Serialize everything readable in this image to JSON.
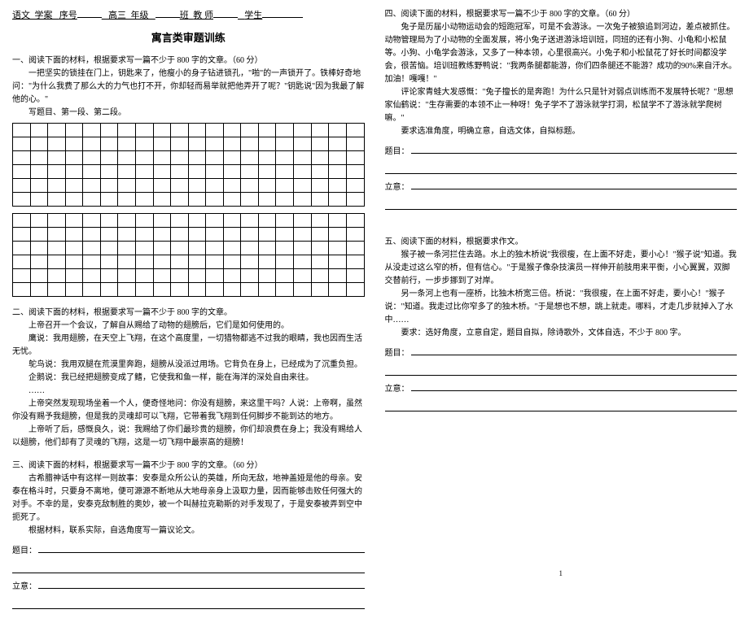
{
  "header": {
    "subject": "语文",
    "doctype": "学案",
    "seq_label": "序号",
    "grade": "高三",
    "grade_label": "年级",
    "class_label": "班",
    "teacher_label": "教 师",
    "student_label": "学生"
  },
  "title": "寓言类审题训练",
  "labels": {
    "topic": "题目：",
    "idea": "立意：",
    "titleline": "写题目、第一段、第二段。"
  },
  "q1": {
    "head": "一、阅读下面的材料，根据要求写一篇不少于 800 字的文章。（60 分）",
    "p1": "一把坚实的锁挂在门上，钥匙来了，他瘦小的身子钻进锁孔，\"啪\"的一声锁开了。铁棒好奇地问：\"为什么我费了那么大的力气也打不开，你却轻而易举就把他弄开了呢？\"钥匙说\"因为我最了解他的心。\""
  },
  "q2": {
    "head": "二、阅读下面的材料，根据要求写一篇不少于 800 字的文章。",
    "p1": "上帝召开一个会议，了解自从赐给了动物的翅膀后，它们是如何使用的。",
    "p2": "鹰说：我用翅膀，在天空上飞翔，在这个高度里，一切猎物都逃不过我的眼睛，我也因而生活无忧。",
    "p3": "鸵鸟说：我用双腿在荒漠里奔跑，翅膀从没派过用场。它背负在身上，已经成为了沉重负担。",
    "p4": "企鹅说：我已经把翅膀变成了鳍，它使我和鱼一样，能在海洋的深处自由来往。",
    "p5": "……",
    "p6": "上帝突然发现现场坐着一个人，便奇怪地问：你没有翅膀，来这里干吗？人说：上帝啊，虽然你没有赐予我翅膀，但是我的灵魂却可以飞翔，它带着我飞翔到任何脚步不能到达的地方。",
    "p7": "上帝听了后，感慨良久，说：我赐给了你们最珍贵的翅膀，你们却浪费在身上；我没有赐给人以翅膀，他们却有了灵魂的飞翔，这是一切飞翔中最崇高的翅膀！"
  },
  "q3": {
    "head": "三、阅读下面的材料，根据要求写一篇不少于 800 字的文章。（60 分）",
    "p1": "古希腊神话中有这样一则故事：安泰是众所公认的英雄，所向无敌，地神盖娅是他的母亲。安泰在格斗时，只要身不离地，便可源源不断地从大地母亲身上汲取力量，因而能够击败任何强大的对手。不幸的是，安泰克敌制胜的奥妙，被一个叫赫拉克勒斯的对手发现了，于是安泰被弄到空中扼死了。",
    "p2": "根据材料，联系实际，自选角度写一篇议论文。"
  },
  "q4": {
    "head": "四、阅读下面的材料，根据要求写一篇不少于 800 字的文章。（60 分）",
    "p1": "兔子是历届小动物运动会的短跑冠军，可是不会游泳。一次兔子被狼追到河边，差点被抓住。动物管理局为了小动物的全面发展，将小兔子送进游泳培训班，同班的还有小狗、小龟和小松鼠等。小狗、小龟学会游泳，又多了一种本领，心里很高兴。小兔子和小松鼠花了好长时间都没学会，很苦恼。培训班教练野鸭说：\"我两条腿都能游，你们四条腿还不能游？成功的90%来自汗水。加油！嘎嘎！\"",
    "p2": "评论家青蛙大发感慨：\"兔子擅长的是奔跑！为什么只是针对弱点训练而不发展特长呢？\"思想家仙鹤说：\"生存需要的本领不止一种呀！兔子学不了游泳就学打洞，松鼠学不了游泳就学爬树嘛。\"",
    "p3": "要求选准角度，明确立意，自选文体，自拟标题。"
  },
  "q5": {
    "head": "五、阅读下面的材料，根据要求作文。",
    "p1": "猴子被一条河拦住去路。水上的独木桥说\"我很瘦，在上面不好走，要小心！\"猴子说\"知道。我从没走过这么窄的桥，但有信心。\"于是猴子像杂技演员一样伸开前肢用来平衡，小心翼翼，双脚交替前行，一步步挪到了对岸。",
    "p2": "另一条河上也有一座桥，比独木桥宽三倍。桥说：\"我很瘦，在上面不好走，要小心！\"猴子说：\"知道。我走过比你窄多了的独木桥。\"于是想也不想，跳上就走。哪料，才走几步就掉入了水中……",
    "p3": "要求：选好角度，立意自定，题目自拟，除诗歌外，文体自选，不少于 800 字。"
  },
  "grid": {
    "rows": 6,
    "cols": 20
  },
  "page_number": "1"
}
